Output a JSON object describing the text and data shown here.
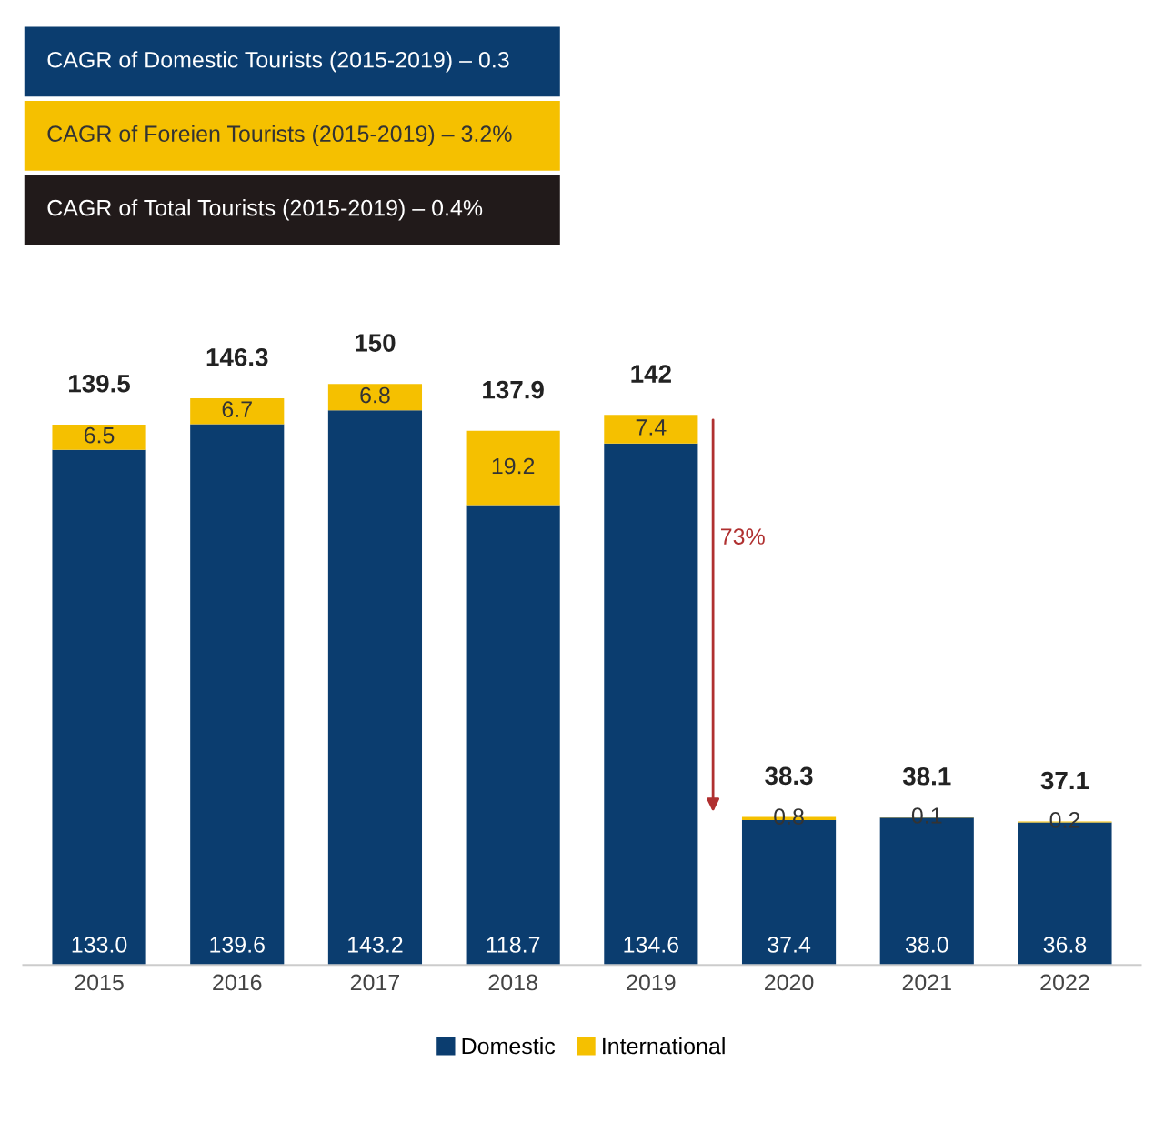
{
  "chart_data": {
    "type": "bar",
    "stacked": true,
    "data_labels": true,
    "legend": "bottom",
    "grid": false,
    "categories": [
      "2015",
      "2016",
      "2017",
      "2018",
      "2019",
      "2020",
      "2021",
      "2022"
    ],
    "series": [
      {
        "name": "Domestic",
        "color": "#0b3d6f",
        "values": [
          133.0,
          139.6,
          143.2,
          118.7,
          134.6,
          37.4,
          38.0,
          36.8
        ],
        "value_labels": [
          "133.0",
          "139.6",
          "143.2",
          "118.7",
          "134.6",
          "37.4",
          "38.0",
          "36.8"
        ]
      },
      {
        "name": "International",
        "color": "#f5c000",
        "values": [
          6.5,
          6.7,
          6.8,
          19.2,
          7.4,
          0.8,
          0.1,
          0.2
        ],
        "value_labels": [
          "6.5",
          "6.7",
          "6.8",
          "19.2",
          "7.4",
          "0.8",
          "0.1",
          "0.2"
        ]
      }
    ],
    "totals": [
      "139.5",
      "146.3",
      "150",
      "137.9",
      "142",
      "38.3",
      "38.1",
      "37.1"
    ],
    "annotations": [
      "CAGR of Domestic Tourists (2015-2019) – 0.3",
      "CAGR of Foreien Tourists (2015-2019) – 3.2%",
      "CAGR of Total Tourists (2015-2019) – 0.4%",
      "73%"
    ]
  }
}
